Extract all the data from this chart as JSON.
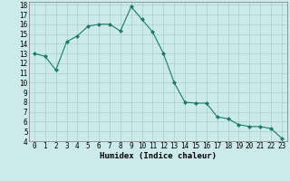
{
  "x": [
    0,
    1,
    2,
    3,
    4,
    5,
    6,
    7,
    8,
    9,
    10,
    11,
    12,
    13,
    14,
    15,
    16,
    17,
    18,
    19,
    20,
    21,
    22,
    23
  ],
  "y": [
    13.0,
    12.7,
    11.3,
    14.2,
    14.8,
    15.8,
    16.0,
    16.0,
    15.3,
    17.8,
    16.5,
    15.2,
    13.0,
    10.0,
    8.0,
    7.9,
    7.9,
    6.5,
    6.3,
    5.7,
    5.5,
    5.5,
    5.3,
    4.3
  ],
  "line_color": "#1a7a6e",
  "marker": "D",
  "marker_size": 2.0,
  "bg_color": "#cceaea",
  "grid_color": "#aacccc",
  "xlabel": "Humidex (Indice chaleur)",
  "xlim": [
    -0.5,
    23.5
  ],
  "ylim": [
    4,
    18.3
  ],
  "yticks": [
    4,
    5,
    6,
    7,
    8,
    9,
    10,
    11,
    12,
    13,
    14,
    15,
    16,
    17,
    18
  ],
  "xticks": [
    0,
    1,
    2,
    3,
    4,
    5,
    6,
    7,
    8,
    9,
    10,
    11,
    12,
    13,
    14,
    15,
    16,
    17,
    18,
    19,
    20,
    21,
    22,
    23
  ],
  "tick_fontsize": 5.5,
  "xlabel_fontsize": 6.5
}
